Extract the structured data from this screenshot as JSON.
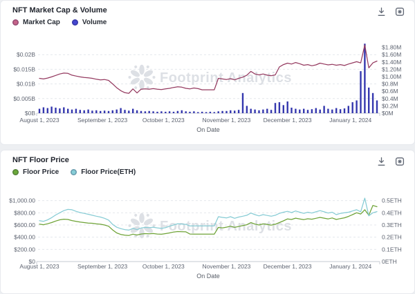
{
  "watermark": "Footprint Analytics",
  "header_icons": [
    {
      "name": "download-icon"
    },
    {
      "name": "watermark-toggle-icon"
    }
  ],
  "chart_data": [
    {
      "type": "line+bar",
      "title": "NFT Market Cap & Volume",
      "start_date": "2023-08-01",
      "interval_days": 2,
      "grid": "dashed-horizontal",
      "legend_position": "top-left",
      "x_axis": {
        "label": "On Date",
        "ticks": [
          "August 1, 2023",
          "September 1, 2023",
          "October 1, 2023",
          "November 1, 2023",
          "December 1, 2023",
          "January 1, 2024"
        ]
      },
      "y_left": {
        "ticks": [
          "$0B",
          "$0.005B",
          "$0.01B",
          "$0.015B",
          "$0.02B"
        ],
        "labeled_max": 0.02,
        "max": 0.025
      },
      "y_right": {
        "ticks": [
          "$0M",
          "$0.2M",
          "$0.4M",
          "$0.6M",
          "$0.8M",
          "$1.00M",
          "$1.20M",
          "$1.40M",
          "$1.60M",
          "$1.80M"
        ],
        "labeled_max": 1.8,
        "max": 2.0
      },
      "series": [
        {
          "name": "Market Cap",
          "type": "line",
          "axis": "left",
          "color": "#94395f",
          "legend_color": "#c56389",
          "values": [
            0.0119,
            0.0117,
            0.012,
            0.0124,
            0.0129,
            0.0134,
            0.0137,
            0.0136,
            0.013,
            0.0127,
            0.0124,
            0.0122,
            0.0121,
            0.0119,
            0.0116,
            0.0114,
            0.0115,
            0.0112,
            0.01,
            0.0087,
            0.0077,
            0.007,
            0.0068,
            0.0083,
            0.0069,
            0.0082,
            0.0083,
            0.0082,
            0.0084,
            0.0082,
            0.0081,
            0.0083,
            0.0085,
            0.0088,
            0.009,
            0.0089,
            0.0085,
            0.0083,
            0.0086,
            0.0084,
            0.008,
            0.008,
            0.008,
            0.008,
            0.0119,
            0.0117,
            0.0115,
            0.0118,
            0.0114,
            0.0119,
            0.0123,
            0.013,
            0.0143,
            0.0134,
            0.0131,
            0.0134,
            0.013,
            0.0128,
            0.0131,
            0.0158,
            0.0166,
            0.0171,
            0.0168,
            0.0173,
            0.0169,
            0.0164,
            0.0166,
            0.0162,
            0.0165,
            0.0171,
            0.0168,
            0.0165,
            0.0167,
            0.0164,
            0.0166,
            0.0163,
            0.0168,
            0.0172,
            0.0176,
            0.0172,
            0.0233,
            0.0155,
            0.0172,
            0.0178
          ]
        },
        {
          "name": "Volume",
          "type": "bar",
          "axis": "right",
          "color": "#3437ae",
          "legend_color": "#4547d0",
          "values": [
            0.12,
            0.16,
            0.14,
            0.18,
            0.15,
            0.13,
            0.16,
            0.12,
            0.1,
            0.12,
            0.09,
            0.08,
            0.1,
            0.07,
            0.08,
            0.06,
            0.07,
            0.06,
            0.08,
            0.1,
            0.14,
            0.09,
            0.07,
            0.12,
            0.08,
            0.06,
            0.05,
            0.06,
            0.05,
            0.04,
            0.05,
            0.04,
            0.05,
            0.04,
            0.06,
            0.08,
            0.05,
            0.04,
            0.05,
            0.03,
            0.04,
            0.03,
            0.04,
            0.03,
            0.05,
            0.06,
            0.06,
            0.08,
            0.07,
            0.09,
            0.55,
            0.2,
            0.12,
            0.1,
            0.08,
            0.1,
            0.12,
            0.09,
            0.28,
            0.3,
            0.22,
            0.32,
            0.15,
            0.12,
            0.1,
            0.12,
            0.09,
            0.11,
            0.14,
            0.1,
            0.2,
            0.12,
            0.1,
            0.14,
            0.11,
            0.13,
            0.2,
            0.3,
            0.35,
            1.15,
            1.9,
            0.7,
            0.55,
            0.35
          ]
        }
      ]
    },
    {
      "type": "line",
      "title": "NFT Floor Price",
      "start_date": "2023-08-01",
      "interval_days": 2,
      "grid": "dashed-horizontal",
      "legend_position": "top-left",
      "x_axis": {
        "label": "On Date",
        "ticks": [
          "August 1, 2023",
          "September 1, 2023",
          "October 1, 2023",
          "November 1, 2023",
          "December 1, 2023",
          "January 1, 2024"
        ]
      },
      "y_left": {
        "ticks": [
          "$0",
          "$200.00",
          "$400.00",
          "$600.00",
          "$800.00",
          "$1,000.00"
        ],
        "labeled_max": 1000,
        "max": 1200
      },
      "y_right": {
        "ticks": [
          "0ETH",
          "0.1ETH",
          "0.2ETH",
          "0.3ETH",
          "0.4ETH",
          "0.5ETH"
        ],
        "labeled_max": 0.5,
        "max": 0.6
      },
      "series": [
        {
          "name": "Floor Price",
          "type": "line",
          "axis": "left",
          "color": "#6da235",
          "legend_color": "#6ca93a",
          "values": [
            615,
            605,
            620,
            640,
            665,
            685,
            695,
            690,
            672,
            660,
            648,
            640,
            632,
            628,
            618,
            612,
            600,
            580,
            520,
            470,
            445,
            432,
            428,
            450,
            436,
            452,
            458,
            455,
            460,
            452,
            448,
            458,
            470,
            485,
            492,
            490,
            488,
            452,
            450,
            450,
            450,
            450,
            450,
            450,
            560,
            552,
            565,
            580,
            562,
            575,
            590,
            605,
            640,
            615,
            600,
            618,
            608,
            598,
            612,
            640,
            668,
            700,
            690,
            712,
            700,
            688,
            702,
            695,
            710,
            725,
            712,
            700,
            715,
            690,
            705,
            718,
            740,
            770,
            800,
            780,
            850,
            760,
            920,
            900
          ]
        },
        {
          "name": "Floor Price(ETH)",
          "type": "line",
          "axis": "right",
          "color": "#85cbd4",
          "legend_color": "#87ced7",
          "values": [
            0.335,
            0.33,
            0.342,
            0.36,
            0.382,
            0.4,
            0.418,
            0.428,
            0.425,
            0.412,
            0.402,
            0.395,
            0.388,
            0.38,
            0.372,
            0.365,
            0.355,
            0.34,
            0.305,
            0.282,
            0.27,
            0.262,
            0.258,
            0.272,
            0.262,
            0.275,
            0.28,
            0.278,
            0.282,
            0.276,
            0.272,
            0.278,
            0.29,
            0.3,
            0.31,
            0.308,
            0.305,
            0.292,
            0.292,
            0.292,
            0.292,
            0.292,
            0.292,
            0.292,
            0.368,
            0.362,
            0.358,
            0.368,
            0.355,
            0.365,
            0.372,
            0.38,
            0.398,
            0.385,
            0.375,
            0.385,
            0.378,
            0.372,
            0.38,
            0.395,
            0.405,
            0.412,
            0.402,
            0.415,
            0.405,
            0.395,
            0.405,
            0.398,
            0.408,
            0.418,
            0.408,
            0.398,
            0.405,
            0.385,
            0.395,
            0.4,
            0.405,
            0.415,
            0.425,
            0.408,
            0.52,
            0.375,
            0.4,
            0.41
          ]
        }
      ]
    }
  ]
}
